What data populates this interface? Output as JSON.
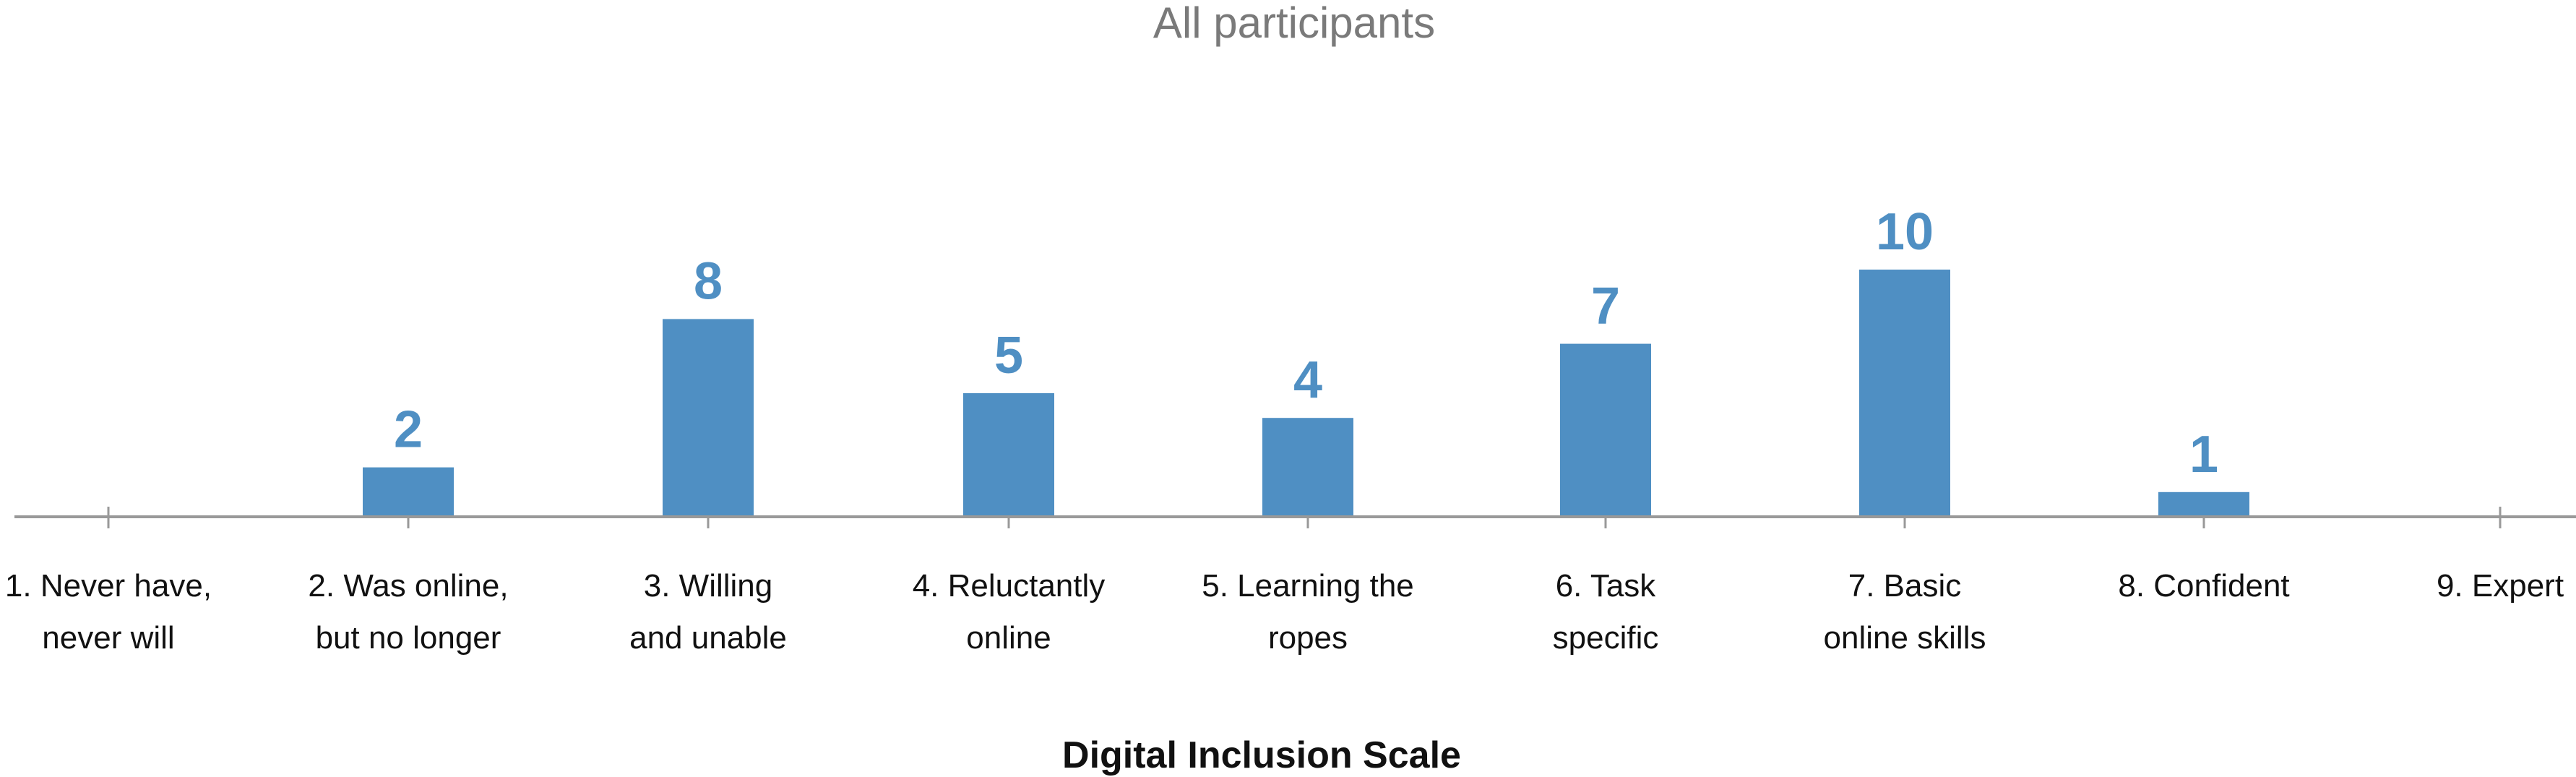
{
  "chart_data": {
    "type": "bar",
    "title": "All participants",
    "xlabel": "Digital Inclusion Scale",
    "ylabel": "",
    "categories": [
      [
        "1. Never have,",
        "never will"
      ],
      [
        "2. Was online,",
        "but no longer"
      ],
      [
        "3. Willing",
        "and unable"
      ],
      [
        "4. Reluctantly",
        "online"
      ],
      [
        "5. Learning the",
        "ropes"
      ],
      [
        "6. Task",
        "specific"
      ],
      [
        "7. Basic",
        "online skills"
      ],
      [
        "8. Confident"
      ],
      [
        "9. Expert"
      ]
    ],
    "values": [
      0,
      2,
      8,
      5,
      4,
      7,
      10,
      1,
      0
    ],
    "value_labels": [
      "",
      "2",
      "8",
      "5",
      "4",
      "7",
      "10",
      "1",
      ""
    ],
    "ylim": [
      0,
      16
    ],
    "grid": false,
    "colors": {
      "bar": "#4f8fc3",
      "value_label": "#4f8fc3",
      "axis": "#999999",
      "title": "#7a7a7a",
      "text": "#111111"
    }
  }
}
